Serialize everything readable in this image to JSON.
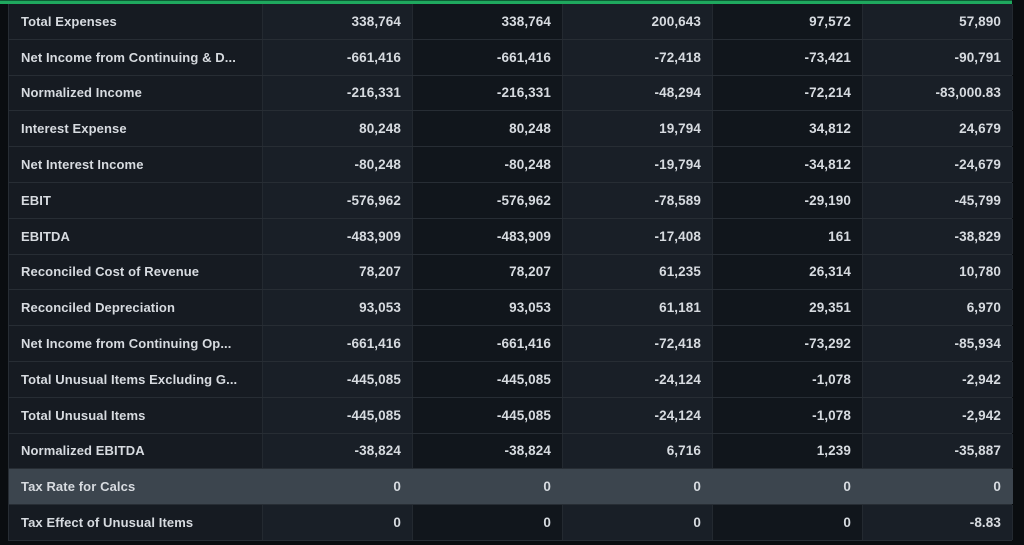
{
  "theme": {
    "accent_green": "#1fa85e",
    "page_bg": "#0a0d10",
    "label_cell_bg": "#161b22",
    "odd_column_bg": "#191f27",
    "even_column_bg": "#11161c",
    "highlight_row_bg": "#3c454e",
    "row_border": "#272d34",
    "col_border": "#232930",
    "text_color": "#d7dbe0"
  },
  "table": {
    "rows": [
      {
        "label": "Total Expenses",
        "values": [
          "338,764",
          "338,764",
          "200,643",
          "97,572",
          "57,890"
        ],
        "highlighted": false
      },
      {
        "label": "Net Income from Continuing & D...",
        "values": [
          "-661,416",
          "-661,416",
          "-72,418",
          "-73,421",
          "-90,791"
        ],
        "highlighted": false
      },
      {
        "label": "Normalized Income",
        "values": [
          "-216,331",
          "-216,331",
          "-48,294",
          "-72,214",
          "-83,000.83"
        ],
        "highlighted": false
      },
      {
        "label": "Interest Expense",
        "values": [
          "80,248",
          "80,248",
          "19,794",
          "34,812",
          "24,679"
        ],
        "highlighted": false
      },
      {
        "label": "Net Interest Income",
        "values": [
          "-80,248",
          "-80,248",
          "-19,794",
          "-34,812",
          "-24,679"
        ],
        "highlighted": false
      },
      {
        "label": "EBIT",
        "values": [
          "-576,962",
          "-576,962",
          "-78,589",
          "-29,190",
          "-45,799"
        ],
        "highlighted": false
      },
      {
        "label": "EBITDA",
        "values": [
          "-483,909",
          "-483,909",
          "-17,408",
          "161",
          "-38,829"
        ],
        "highlighted": false
      },
      {
        "label": "Reconciled Cost of Revenue",
        "values": [
          "78,207",
          "78,207",
          "61,235",
          "26,314",
          "10,780"
        ],
        "highlighted": false
      },
      {
        "label": "Reconciled Depreciation",
        "values": [
          "93,053",
          "93,053",
          "61,181",
          "29,351",
          "6,970"
        ],
        "highlighted": false
      },
      {
        "label": "Net Income from Continuing Op...",
        "values": [
          "-661,416",
          "-661,416",
          "-72,418",
          "-73,292",
          "-85,934"
        ],
        "highlighted": false
      },
      {
        "label": "Total Unusual Items Excluding G...",
        "values": [
          "-445,085",
          "-445,085",
          "-24,124",
          "-1,078",
          "-2,942"
        ],
        "highlighted": false
      },
      {
        "label": "Total Unusual Items",
        "values": [
          "-445,085",
          "-445,085",
          "-24,124",
          "-1,078",
          "-2,942"
        ],
        "highlighted": false
      },
      {
        "label": "Normalized EBITDA",
        "values": [
          "-38,824",
          "-38,824",
          "6,716",
          "1,239",
          "-35,887"
        ],
        "highlighted": false
      },
      {
        "label": "Tax Rate for Calcs",
        "values": [
          "0",
          "0",
          "0",
          "0",
          "0"
        ],
        "highlighted": true
      },
      {
        "label": "Tax Effect of Unusual Items",
        "values": [
          "0",
          "0",
          "0",
          "0",
          "-8.83"
        ],
        "highlighted": false
      }
    ]
  }
}
